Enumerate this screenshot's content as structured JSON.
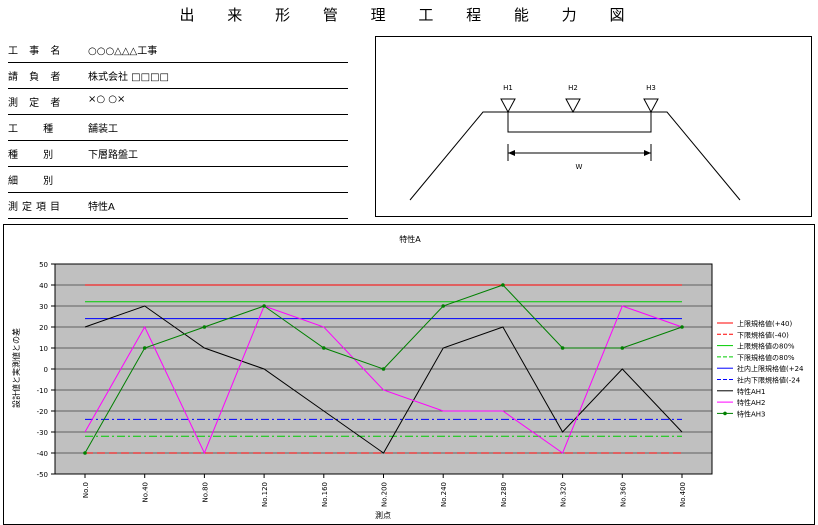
{
  "page_title": "出 来 形 管 理 工 程 能 力 図",
  "info": [
    {
      "label": "工 事 名",
      "value": "○○○△△△工事"
    },
    {
      "label": "請 負 者",
      "value": "株式会社 □□□□"
    },
    {
      "label": "測 定 者",
      "value": "×○ ○×"
    },
    {
      "label": "工　 種",
      "value": "舗装工"
    },
    {
      "label": "種　 別",
      "value": "下層路盤工"
    },
    {
      "label": "細　 別",
      "value": ""
    },
    {
      "label": "測定項目",
      "value": "特性A"
    }
  ],
  "diagram": {
    "markers": [
      "H1",
      "H2",
      "H3"
    ],
    "width_label": "W"
  },
  "chart_data": {
    "type": "line",
    "title": "特性A",
    "xlabel": "測点",
    "ylabel": "設計値と実測値との差",
    "categories": [
      "No.0",
      "No.40",
      "No.80",
      "No.120",
      "No.160",
      "No.200",
      "No.240",
      "No.280",
      "No.320",
      "No.360",
      "No.400"
    ],
    "ylim": [
      -50,
      50
    ],
    "yticks": [
      50,
      40,
      30,
      20,
      10,
      0,
      -10,
      -20,
      -30,
      -40,
      -50
    ],
    "plot_background": "#c0c0c0",
    "grid": true,
    "legend_position": "right",
    "reference_lines": [
      {
        "name": "上限規格値(+40)",
        "value": 40,
        "color": "#ff0000",
        "dash": "solid"
      },
      {
        "name": "下限規格値(-40)",
        "value": -40,
        "color": "#ff0000",
        "dash": "dashed"
      },
      {
        "name": "上限規格値の80%",
        "value": 32,
        "color": "#00cc00",
        "dash": "solid"
      },
      {
        "name": "下限規格値の80%",
        "value": -32,
        "color": "#00cc00",
        "dash": "dashdot"
      },
      {
        "name": "社内上限規格値(+24",
        "value": 24,
        "color": "#0000ff",
        "dash": "solid"
      },
      {
        "name": "社内下限規格値(-24",
        "value": -24,
        "color": "#0000ff",
        "dash": "dashdot"
      }
    ],
    "series": [
      {
        "name": "特性AH1",
        "color": "#000000",
        "marker": false,
        "values": [
          20,
          30,
          10,
          0,
          -20,
          -40,
          10,
          20,
          -30,
          0,
          -30
        ]
      },
      {
        "name": "特性AH2",
        "color": "#ff00ff",
        "marker": false,
        "values": [
          -30,
          20,
          -40,
          30,
          20,
          -10,
          -20,
          -20,
          -40,
          30,
          20
        ]
      },
      {
        "name": "特性AH3",
        "color": "#008000",
        "marker": true,
        "values": [
          -40,
          10,
          20,
          30,
          10,
          0,
          30,
          40,
          10,
          10,
          20
        ]
      }
    ]
  }
}
